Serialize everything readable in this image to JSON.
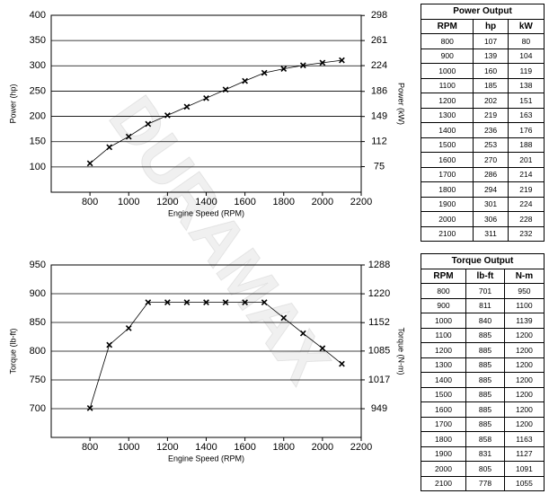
{
  "watermark": "DURAMAX",
  "chart_data": [
    {
      "type": "line",
      "xlabel": "Engine Speed (RPM)",
      "ylabel": "Power (hp)",
      "y2label": "Power (kW)",
      "x": [
        800,
        900,
        1000,
        1100,
        1200,
        1300,
        1400,
        1500,
        1600,
        1700,
        1800,
        1900,
        2000,
        2100
      ],
      "series": [
        {
          "color": "#000000",
          "values": [
            107,
            139,
            160,
            185,
            202,
            219,
            236,
            253,
            270,
            286,
            294,
            301,
            306,
            311
          ]
        }
      ],
      "xlim": [
        600,
        2200
      ],
      "xticks": [
        800,
        1000,
        1200,
        1400,
        1600,
        1800,
        2000,
        2200
      ],
      "ylim": [
        50,
        400
      ],
      "yticks": [
        100,
        150,
        200,
        250,
        300,
        350,
        400
      ],
      "y2lim": [
        37.3,
        298.3
      ],
      "y2ticks": [
        75,
        112,
        149,
        186,
        224,
        261,
        298
      ],
      "grid": true
    },
    {
      "type": "line",
      "xlabel": "Engine Speed (RPM)",
      "ylabel": "Torque (lb-ft)",
      "y2label": "Torque (N-m)",
      "x": [
        800,
        900,
        1000,
        1100,
        1200,
        1300,
        1400,
        1500,
        1600,
        1700,
        1800,
        1900,
        2000,
        2100
      ],
      "series": [
        {
          "color": "#000000",
          "values": [
            701,
            811,
            840,
            885,
            885,
            885,
            885,
            885,
            885,
            885,
            858,
            831,
            805,
            778
          ]
        }
      ],
      "xlim": [
        600,
        2200
      ],
      "xticks": [
        800,
        1000,
        1200,
        1400,
        1600,
        1800,
        2000,
        2200
      ],
      "ylim": [
        650,
        950
      ],
      "yticks": [
        700,
        750,
        800,
        850,
        900,
        950
      ],
      "y2lim": [
        881.3,
        1288
      ],
      "y2ticks": [
        949,
        1017,
        1085,
        1152,
        1220,
        1288
      ],
      "grid": true
    }
  ],
  "tables": [
    {
      "title": "Power Output",
      "columns": [
        "RPM",
        "hp",
        "kW"
      ],
      "rows": [
        [
          800,
          107,
          80
        ],
        [
          900,
          139,
          104
        ],
        [
          1000,
          160,
          119
        ],
        [
          1100,
          185,
          138
        ],
        [
          1200,
          202,
          151
        ],
        [
          1300,
          219,
          163
        ],
        [
          1400,
          236,
          176
        ],
        [
          1500,
          253,
          188
        ],
        [
          1600,
          270,
          201
        ],
        [
          1700,
          286,
          214
        ],
        [
          1800,
          294,
          219
        ],
        [
          1900,
          301,
          224
        ],
        [
          2000,
          306,
          228
        ],
        [
          2100,
          311,
          232
        ]
      ]
    },
    {
      "title": "Torque Output",
      "columns": [
        "RPM",
        "lb-ft",
        "N-m"
      ],
      "rows": [
        [
          800,
          701,
          950
        ],
        [
          900,
          811,
          1100
        ],
        [
          1000,
          840,
          1139
        ],
        [
          1100,
          885,
          1200
        ],
        [
          1200,
          885,
          1200
        ],
        [
          1300,
          885,
          1200
        ],
        [
          1400,
          885,
          1200
        ],
        [
          1500,
          885,
          1200
        ],
        [
          1600,
          885,
          1200
        ],
        [
          1700,
          885,
          1200
        ],
        [
          1800,
          858,
          1163
        ],
        [
          1900,
          831,
          1127
        ],
        [
          2000,
          805,
          1091
        ],
        [
          2100,
          778,
          1055
        ]
      ]
    }
  ]
}
